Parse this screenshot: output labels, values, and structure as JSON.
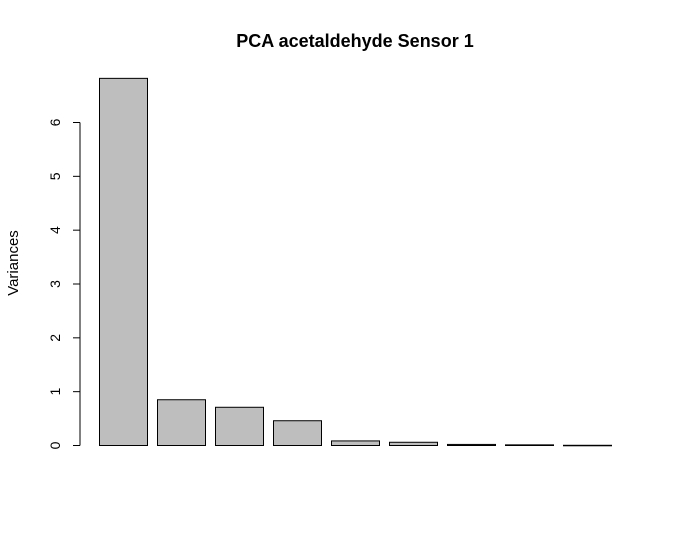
{
  "chart_data": {
    "type": "bar",
    "title": "PCA acetaldehyde Sensor 1",
    "xlabel": "",
    "ylabel": "Variances",
    "values": [
      6.82,
      0.85,
      0.71,
      0.46,
      0.085,
      0.06,
      0.02,
      0.012,
      0.004
    ],
    "yticks": [
      0,
      1,
      2,
      3,
      4,
      5,
      6
    ],
    "ylim": [
      0,
      6.82
    ],
    "grid": false,
    "legend": "none",
    "bar_color": "#bebebe",
    "edge_color": "#000000"
  }
}
